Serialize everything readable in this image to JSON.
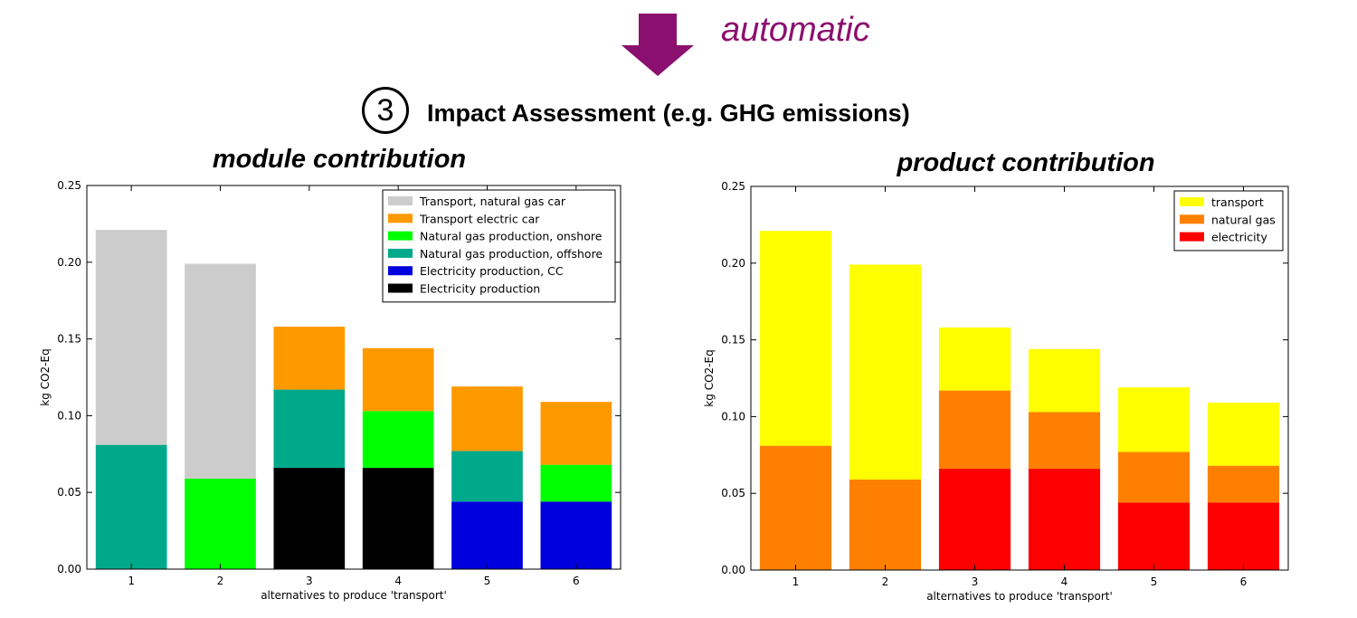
{
  "header": {
    "automatic_label": "automatic",
    "step_number": "3",
    "step_title": "Impact Assessment",
    "step_note": "(e.g. GHG emissions)",
    "arrow_color": "#8b0f6e"
  },
  "chart_data": [
    {
      "type": "bar",
      "stacked": true,
      "title": "module contribution",
      "xlabel": "alternatives to produce 'transport'",
      "ylabel": "kg CO2-Eq",
      "ylim": [
        0,
        0.25
      ],
      "yticks": [
        "0.00",
        "0.05",
        "0.10",
        "0.15",
        "0.20",
        "0.25"
      ],
      "categories": [
        "1",
        "2",
        "3",
        "4",
        "5",
        "6"
      ],
      "legend_position": "top-right",
      "legend_order": [
        "Transport, natural gas car",
        "Transport electric car",
        "Natural gas production, onshore",
        "Natural gas production, offshore",
        "Electricity production, CC",
        "Electricity production"
      ],
      "series": [
        {
          "name": "Electricity production",
          "color": "#000000",
          "values": [
            0,
            0,
            0.066,
            0.066,
            0,
            0
          ]
        },
        {
          "name": "Electricity production, CC",
          "color": "#0000dd",
          "values": [
            0,
            0,
            0,
            0,
            0.044,
            0.044
          ]
        },
        {
          "name": "Natural gas production, offshore",
          "color": "#00a98a",
          "values": [
            0.081,
            0,
            0.051,
            0,
            0.033,
            0
          ]
        },
        {
          "name": "Natural gas production, onshore",
          "color": "#00ff00",
          "values": [
            0,
            0.059,
            0,
            0.037,
            0,
            0.024
          ]
        },
        {
          "name": "Transport electric car",
          "color": "#ff9900",
          "values": [
            0,
            0,
            0.041,
            0.041,
            0.042,
            0.041
          ]
        },
        {
          "name": "Transport, natural gas car",
          "color": "#cccccc",
          "values": [
            0.14,
            0.14,
            0,
            0,
            0,
            0
          ]
        }
      ]
    },
    {
      "type": "bar",
      "stacked": true,
      "title": "product contribution",
      "xlabel": "alternatives to produce 'transport'",
      "ylabel": "kg CO2-Eq",
      "ylim": [
        0,
        0.25
      ],
      "yticks": [
        "0.00",
        "0.05",
        "0.10",
        "0.15",
        "0.20",
        "0.25"
      ],
      "categories": [
        "1",
        "2",
        "3",
        "4",
        "5",
        "6"
      ],
      "legend_position": "top-right",
      "legend_order": [
        "transport",
        "natural gas",
        "electricity"
      ],
      "series": [
        {
          "name": "electricity",
          "color": "#ff0000",
          "values": [
            0,
            0,
            0.066,
            0.066,
            0.044,
            0.044
          ]
        },
        {
          "name": "natural gas",
          "color": "#ff8000",
          "values": [
            0.081,
            0.059,
            0.051,
            0.037,
            0.033,
            0.024
          ]
        },
        {
          "name": "transport",
          "color": "#ffff00",
          "values": [
            0.14,
            0.14,
            0.041,
            0.041,
            0.042,
            0.041
          ]
        }
      ]
    }
  ]
}
